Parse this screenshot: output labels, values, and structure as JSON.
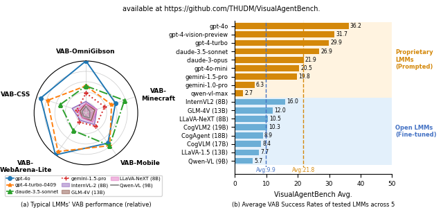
{
  "title": "available at https://github.com/THUDM/VisualAgentBench.",
  "chart_data": [
    {
      "type": "radar",
      "title": "(a) Typical LMMs' VAB performance (relative)",
      "categories": [
        "VAB-OmniGibson",
        "VAB-\nMinecraft",
        "VAB-Mobile",
        "VAB-\nWebArena-Lite",
        "VAB-CSS"
      ],
      "ylim": [
        0,
        100
      ],
      "yticks": [
        20,
        40,
        60,
        80,
        100
      ],
      "tick_labels": false,
      "grid": true,
      "legend": "lower left",
      "series": [
        {
          "name": "gpt-4o",
          "color": "#1f77b4",
          "values": [
            100,
            60,
            72,
            100,
            92
          ],
          "marker": "circle",
          "line_style": "solid"
        },
        {
          "name": "gpt-4-turbo-0409",
          "color": "#ff7f0e",
          "values": [
            52,
            52,
            78,
            92,
            78
          ],
          "marker": "star",
          "line_style": "dashed"
        },
        {
          "name": "claude-3.5-sonnet",
          "color": "#2ca02c",
          "values": [
            52,
            78,
            78,
            42,
            52
          ],
          "marker": "triangle",
          "line_style": "dashdot"
        },
        {
          "name": "gemini-1.5-pro",
          "color": "#d62728",
          "values": [
            38,
            38,
            32,
            22,
            18
          ],
          "marker": "plus",
          "line_style": "dotted"
        },
        {
          "name": "InternVL-2 (8B)",
          "color": "#9467bd",
          "values": [
            22,
            22,
            28,
            18,
            28
          ],
          "type": "area",
          "line_style": "solid"
        },
        {
          "name": "GLM-4V (13B)",
          "color": "#8c564b",
          "values": [
            18,
            18,
            18,
            12,
            12
          ],
          "type": "area",
          "line_style": "solid"
        },
        {
          "name": "LLaVA-NeXT (8B)",
          "color": "#e377c2",
          "values": [
            18,
            22,
            22,
            12,
            18
          ],
          "type": "area",
          "line_style": "solid"
        },
        {
          "name": "Qwen-VL (9B)",
          "color": "#7f7f7f",
          "values": [
            12,
            8,
            12,
            8,
            8
          ],
          "line_style": "solid"
        }
      ]
    },
    {
      "type": "bar",
      "orientation": "horizontal",
      "title": "(b) Average VAB Success Rates of tested LMMs across 5",
      "categories": [
        "gpt-4o",
        "gpt-4-vision-preview",
        "gpt-4-turbo",
        "claude-3.5-sonnet",
        "claude-3-opus",
        "gpt-4o-mini",
        "gemini-1.5-pro",
        "gemini-1.0-pro",
        "qwen-vl-max",
        "InternVL2 (8B)",
        "GLM-4V (13B)",
        "LLaVA-NeXT (8B)",
        "CogVLM2 (19B)",
        "CogAgent (18B)",
        "CogVLM (17B)",
        "LLaVA-1.5 (13B)",
        "Qwen-VL (9B)"
      ],
      "values": [
        36.2,
        31.7,
        29.9,
        26.9,
        21.9,
        20.5,
        19.8,
        6.3,
        2.7,
        16.0,
        12.0,
        10.5,
        10.3,
        8.9,
        8.4,
        7.7,
        5.7
      ],
      "colors": [
        "#d4880a",
        "#d4880a",
        "#d4880a",
        "#d4880a",
        "#d4880a",
        "#d4880a",
        "#d4880a",
        "#d4880a",
        "#d4880a",
        "#6baed6",
        "#6baed6",
        "#6baed6",
        "#6baed6",
        "#6baed6",
        "#6baed6",
        "#6baed6",
        "#6baed6"
      ],
      "data_labels": true,
      "xlim": [
        0,
        50
      ],
      "xticks": [
        0,
        10,
        20,
        30,
        40,
        50
      ],
      "xlabel": "VisualAgentBench Avg.",
      "grid": false,
      "reference_lines": [
        {
          "value": 9.9,
          "label": "Avg:9.9",
          "color": "#4472c4",
          "line_style": "dashed"
        },
        {
          "value": 21.8,
          "label": "Avg:21.8",
          "color": "#d4880a",
          "line_style": "dashed"
        }
      ],
      "groups": [
        {
          "label": "Proprietary\nLMMs\n(Prompted)",
          "first": "gpt-4o",
          "last": "qwen-vl-max",
          "color": "#d4880a",
          "background": "#fff3e0"
        },
        {
          "label": "Open LMMs\n(Fine-tuned)",
          "first": "InternVL2 (8B)",
          "last": "Qwen-VL (9B)",
          "color": "#4472c4",
          "background": "#e3f0fb"
        }
      ]
    }
  ]
}
